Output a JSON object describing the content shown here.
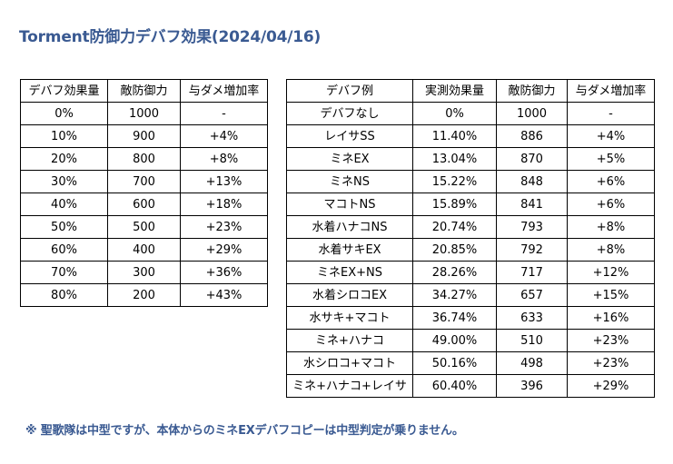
{
  "title": "Torment防御力デバフ効果(2024/04/16)",
  "left_table": {
    "headers": [
      "デバフ効果量",
      "敵防御力",
      "与ダメ増加率"
    ],
    "rows": [
      [
        "0%",
        "1000",
        "-"
      ],
      [
        "10%",
        "900",
        "+4%"
      ],
      [
        "20%",
        "800",
        "+8%"
      ],
      [
        "30%",
        "700",
        "+13%"
      ],
      [
        "40%",
        "600",
        "+18%"
      ],
      [
        "50%",
        "500",
        "+23%"
      ],
      [
        "60%",
        "400",
        "+29%"
      ],
      [
        "70%",
        "300",
        "+36%"
      ],
      [
        "80%",
        "200",
        "+43%"
      ]
    ]
  },
  "right_table": {
    "headers": [
      "デバフ例",
      "実測効果量",
      "敵防御力",
      "与ダメ増加率"
    ],
    "rows": [
      [
        "デバフなし",
        "0%",
        "1000",
        "-"
      ],
      [
        "レイサSS",
        "11.40%",
        "886",
        "+4%"
      ],
      [
        "ミネEX",
        "13.04%",
        "870",
        "+5%"
      ],
      [
        "ミネNS",
        "15.22%",
        "848",
        "+6%"
      ],
      [
        "マコトNS",
        "15.89%",
        "841",
        "+6%"
      ],
      [
        "水着ハナコNS",
        "20.74%",
        "793",
        "+8%"
      ],
      [
        "水着サキEX",
        "20.85%",
        "792",
        "+8%"
      ],
      [
        "ミネEX+NS",
        "28.26%",
        "717",
        "+12%"
      ],
      [
        "水着シロコEX",
        "34.27%",
        "657",
        "+15%"
      ],
      [
        "水サキ+マコト",
        "36.74%",
        "633",
        "+16%"
      ],
      [
        "ミネ+ハナコ",
        "49.00%",
        "510",
        "+23%"
      ],
      [
        "水シロコ+マコト",
        "50.16%",
        "498",
        "+23%"
      ],
      [
        "ミネ+ハナコ+レイサ",
        "60.40%",
        "396",
        "+29%"
      ]
    ]
  },
  "note": "※ 聖歌隊は中型ですが、本体からのミネEXデバフコピーは中型判定が乗りません。",
  "colors": {
    "accent": "#3a5a92",
    "border": "#000000",
    "background": "#ffffff"
  }
}
